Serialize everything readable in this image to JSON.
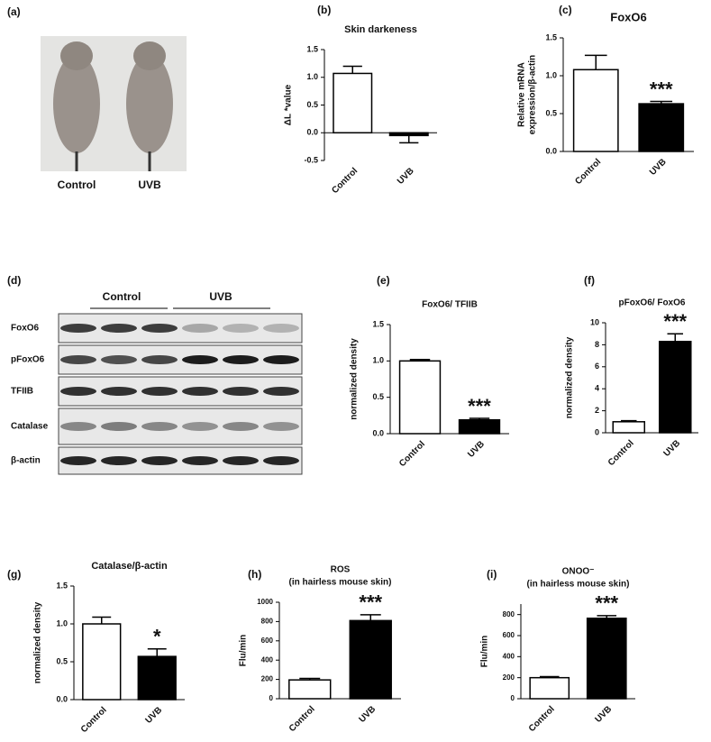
{
  "chart_data": [
    {
      "type": "photo",
      "panel": "(a)",
      "labels": [
        "Control",
        "UVB"
      ]
    },
    {
      "type": "bar",
      "panel": "(b)",
      "title": "Skin darkeness",
      "ylabel": "ΔL *value",
      "categories": [
        "Control",
        "UVB"
      ],
      "values": [
        1.07,
        -0.05
      ],
      "errors": [
        0.13,
        0.13
      ],
      "colors": [
        "#ffffff",
        "#000000"
      ],
      "ylim": [
        -0.5,
        1.5
      ],
      "yticks": [
        {
          "value": 1.5,
          "label": "1.5"
        },
        {
          "value": 1,
          "label": "1.0"
        },
        {
          "value": 0.5,
          "label": "0.5"
        },
        {
          "value": 0,
          "label": "0.0"
        },
        {
          "value": -0.5,
          "label": "-0.5"
        }
      ]
    },
    {
      "type": "bar",
      "panel": "(c)",
      "title": "FoxO6",
      "ylabel": [
        "Relative mRNA",
        "expression/β-actin"
      ],
      "categories": [
        "Control",
        "UVB"
      ],
      "values": [
        1.08,
        0.63
      ],
      "errors": [
        0.19,
        0.03
      ],
      "colors": [
        "#ffffff",
        "#000000"
      ],
      "ylim": [
        0,
        1.5
      ],
      "yticks": [
        {
          "value": 1.5,
          "label": "1.5"
        },
        {
          "value": 1,
          "label": "1.0"
        },
        {
          "value": 0.5,
          "label": "0.5"
        },
        {
          "value": 0,
          "label": "0.0"
        }
      ],
      "annotation": "***"
    },
    {
      "type": "blot",
      "panel": "(d)",
      "groups": [
        "Control",
        "UVB"
      ],
      "rows": [
        "FoxO6",
        "pFoxO6",
        "TFIIB",
        "Catalase",
        "β-actin"
      ]
    },
    {
      "type": "bar",
      "panel": "(e)",
      "title": "FoxO6/ TFIIB",
      "ylabel": "normalized density",
      "categories": [
        "Control",
        "UVB"
      ],
      "values": [
        1.0,
        0.19
      ],
      "errors": [
        0.02,
        0.02
      ],
      "colors": [
        "#ffffff",
        "#000000"
      ],
      "ylim": [
        0,
        1.5
      ],
      "yticks": [
        {
          "value": 1.5,
          "label": "1.5"
        },
        {
          "value": 1,
          "label": "1.0"
        },
        {
          "value": 0.5,
          "label": "0.5"
        },
        {
          "value": 0,
          "label": "0.0"
        }
      ],
      "annotation": "***"
    },
    {
      "type": "bar",
      "panel": "(f)",
      "title": "pFoxO6/ FoxO6",
      "ylabel": "normalized density",
      "categories": [
        "Control",
        "UVB"
      ],
      "values": [
        1.0,
        8.3
      ],
      "errors": [
        0.1,
        0.7
      ],
      "colors": [
        "#ffffff",
        "#000000"
      ],
      "ylim": [
        0,
        10
      ],
      "yticks": [
        10,
        8,
        6,
        4,
        2,
        0
      ],
      "annotation": "***"
    },
    {
      "type": "bar",
      "panel": "(g)",
      "title": "Catalase/β-actin",
      "ylabel": "normalized density",
      "categories": [
        "Control",
        "UVB"
      ],
      "values": [
        1.0,
        0.57
      ],
      "errors": [
        0.09,
        0.1
      ],
      "colors": [
        "#ffffff",
        "#000000"
      ],
      "ylim": [
        0,
        1.5
      ],
      "yticks": [
        {
          "value": 1.5,
          "label": "1.5"
        },
        {
          "value": 1,
          "label": "1.0"
        },
        {
          "value": 0.5,
          "label": "0.5"
        },
        {
          "value": 0,
          "label": "0.0"
        }
      ],
      "annotation": "*"
    },
    {
      "type": "bar",
      "panel": "(h)",
      "title": [
        "ROS",
        "(in hairless mouse skin)"
      ],
      "ylabel": "Flu/min",
      "categories": [
        "Control",
        "UVB"
      ],
      "values": [
        195,
        810
      ],
      "errors": [
        15,
        60
      ],
      "colors": [
        "#ffffff",
        "#000000"
      ],
      "ylim": [
        0,
        1000
      ],
      "yticks": [
        1000,
        800,
        600,
        400,
        200,
        0
      ],
      "annotation": "***"
    },
    {
      "type": "bar",
      "panel": "(i)",
      "title": [
        "ONOO⁻",
        "(in hairless mouse skin)"
      ],
      "ylabel": "Flu/min",
      "categories": [
        "Control",
        "UVB"
      ],
      "values": [
        200,
        765
      ],
      "errors": [
        10,
        25
      ],
      "colors": [
        "#ffffff",
        "#000000"
      ],
      "ylim": [
        0,
        900
      ],
      "yticks": [
        800,
        600,
        400,
        200,
        0
      ],
      "annotation": "***"
    }
  ]
}
